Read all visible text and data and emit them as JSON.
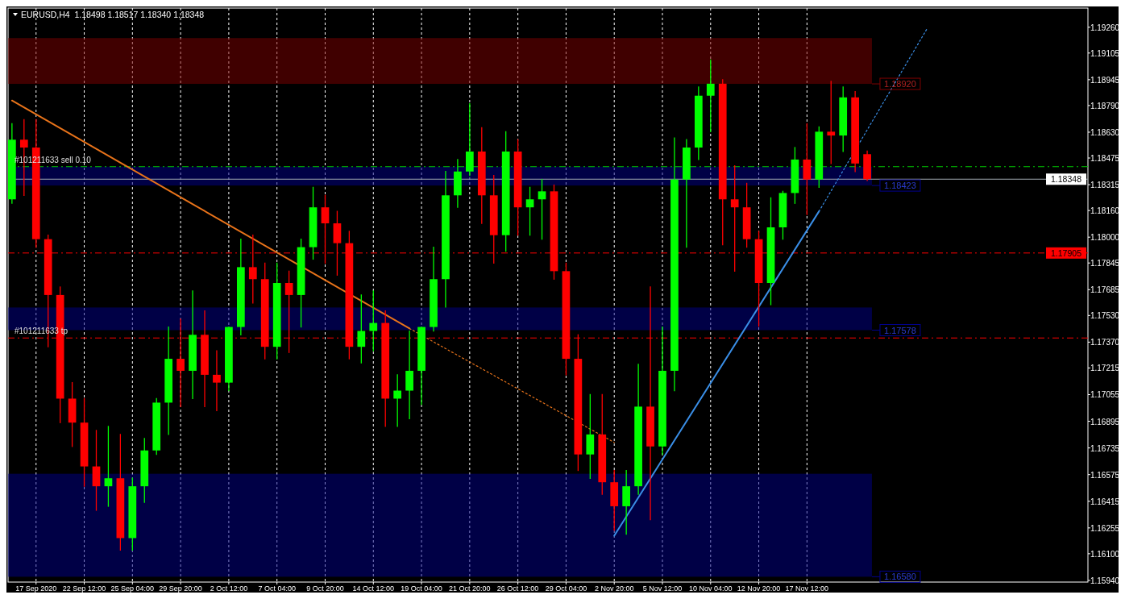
{
  "chart_data": {
    "type": "candlestick",
    "title": "EURUSD,H4  1.18498 1.18517 1.18340 1.18348",
    "categories": [
      null,
      null,
      "17 Sep 2020",
      null,
      null,
      null,
      "22 Sep 12:00",
      null,
      null,
      null,
      "25 Sep 04:00",
      null,
      null,
      null,
      "29 Sep 20:00",
      null,
      null,
      null,
      "2 Oct 12:00",
      null,
      null,
      null,
      "7 Oct 04:00",
      null,
      null,
      null,
      "9 Oct 20:00",
      null,
      null,
      null,
      "14 Oct 12:00",
      null,
      null,
      null,
      "19 Oct 04:00",
      null,
      null,
      null,
      "21 Oct 20:00",
      null,
      null,
      null,
      "26 Oct 12:00",
      null,
      null,
      null,
      "29 Oct 04:00",
      null,
      null,
      null,
      "2 Nov 20:00",
      null,
      null,
      null,
      "5 Nov 12:00",
      null,
      null,
      null,
      "10 Nov 04:00",
      null,
      null,
      null,
      "12 Nov 20:00",
      null,
      null,
      null,
      "17 Nov 12:00",
      null,
      null,
      null,
      null,
      null,
      null,
      null,
      null,
      null,
      null,
      null,
      null,
      null,
      null,
      null,
      null,
      null,
      null,
      null,
      null,
      null,
      null,
      null
    ],
    "ohlc": [
      [
        1.18227,
        1.18681,
        1.18203,
        1.18585
      ],
      [
        1.18585,
        1.18705,
        1.18251,
        1.18538
      ],
      [
        1.18538,
        1.18705,
        1.1794,
        1.17988
      ],
      [
        1.17988,
        1.18012,
        1.17342,
        1.17653
      ],
      [
        1.17653,
        1.17701,
        1.16887,
        1.17031
      ],
      [
        1.17031,
        1.17127,
        1.16744,
        1.16887
      ],
      [
        1.16887,
        1.17031,
        1.16505,
        1.16624
      ],
      [
        1.16624,
        1.1684,
        1.16361,
        1.16505
      ],
      [
        1.16505,
        1.16864,
        1.16385,
        1.16553
      ],
      [
        1.16553,
        1.16816,
        1.16122,
        1.16194
      ],
      [
        1.16194,
        1.16553,
        1.16122,
        1.16505
      ],
      [
        1.16505,
        1.16792,
        1.16409,
        1.1672
      ],
      [
        1.1672,
        1.17031,
        1.16696,
        1.17007
      ],
      [
        1.17007,
        1.17461,
        1.16816,
        1.1727
      ],
      [
        1.1727,
        1.17509,
        1.16983,
        1.17198
      ],
      [
        1.17198,
        1.17677,
        1.17031,
        1.17414
      ],
      [
        1.17414,
        1.17557,
        1.16983,
        1.17174
      ],
      [
        1.17174,
        1.17318,
        1.16959,
        1.17127
      ],
      [
        1.17127,
        1.17461,
        1.17079,
        1.17461
      ],
      [
        1.17461,
        1.17988,
        1.17414,
        1.1782
      ],
      [
        1.1782,
        1.18012,
        1.17605,
        1.17748
      ],
      [
        1.17748,
        1.17844,
        1.1727,
        1.17342
      ],
      [
        1.17342,
        1.17844,
        1.1727,
        1.17725
      ],
      [
        1.17725,
        1.17796,
        1.17308,
        1.17653
      ],
      [
        1.17653,
        1.17988,
        1.17461,
        1.1794
      ],
      [
        1.1794,
        1.18299,
        1.17868,
        1.18179
      ],
      [
        1.18179,
        1.18251,
        1.17844,
        1.18083
      ],
      [
        1.18083,
        1.18155,
        1.17772,
        1.17964
      ],
      [
        1.17964,
        1.18035,
        1.1727,
        1.17342
      ],
      [
        1.17342,
        1.17653,
        1.17246,
        1.17437
      ],
      [
        1.17437,
        1.17677,
        1.17318,
        1.17485
      ],
      [
        1.17485,
        1.17557,
        1.16864,
        1.17031
      ],
      [
        1.17031,
        1.17174,
        1.16864,
        1.17079
      ],
      [
        1.17079,
        1.17437,
        1.16911,
        1.17198
      ],
      [
        1.17198,
        1.17461,
        1.16997,
        1.17461
      ],
      [
        1.17461,
        1.1794,
        1.17437,
        1.17748
      ],
      [
        1.17748,
        1.18394,
        1.17581,
        1.18251
      ],
      [
        1.18251,
        1.18466,
        1.18179,
        1.18394
      ],
      [
        1.18394,
        1.18801,
        1.1837,
        1.18514
      ],
      [
        1.18514,
        1.18657,
        1.18083,
        1.18251
      ],
      [
        1.18251,
        1.1837,
        1.17844,
        1.18012
      ],
      [
        1.18012,
        1.18633,
        1.17916,
        1.18514
      ],
      [
        1.18514,
        1.18585,
        1.18012,
        1.18179
      ],
      [
        1.18179,
        1.18299,
        1.18012,
        1.18227
      ],
      [
        1.18227,
        1.18346,
        1.17988,
        1.18275
      ],
      [
        1.18275,
        1.18313,
        1.17748,
        1.17796
      ],
      [
        1.17796,
        1.17844,
        1.17174,
        1.1727
      ],
      [
        1.1727,
        1.17414,
        1.166,
        1.16696
      ],
      [
        1.16696,
        1.17055,
        1.16553,
        1.16816
      ],
      [
        1.16816,
        1.17055,
        1.16457,
        1.16529
      ],
      [
        1.16529,
        1.166,
        1.16242,
        1.16385
      ],
      [
        1.16385,
        1.166,
        1.16218,
        1.16505
      ],
      [
        1.16505,
        1.17237,
        1.16457,
        1.16983
      ],
      [
        1.16983,
        1.17701,
        1.16304,
        1.16744
      ],
      [
        1.16744,
        1.17461,
        1.16696,
        1.17198
      ],
      [
        1.17198,
        1.18595,
        1.17079,
        1.18346
      ],
      [
        1.18346,
        1.18585,
        1.1794,
        1.18538
      ],
      [
        1.18538,
        1.18901,
        1.18466,
        1.18849
      ],
      [
        1.18849,
        1.19064,
        1.18633,
        1.18921
      ],
      [
        1.18921,
        1.18945,
        1.17954,
        1.18227
      ],
      [
        1.18227,
        1.18428,
        1.17796,
        1.18179
      ],
      [
        1.18179,
        1.18323,
        1.1794,
        1.17988
      ],
      [
        1.17988,
        1.18035,
        1.17466,
        1.17725
      ],
      [
        1.17725,
        1.18236,
        1.17595,
        1.18059
      ],
      [
        1.18059,
        1.18275,
        1.17988,
        1.18265
      ],
      [
        1.18265,
        1.18538,
        1.18203,
        1.18466
      ],
      [
        1.18466,
        1.18681,
        1.18136,
        1.18346
      ],
      [
        1.18346,
        1.18662,
        1.18299,
        1.18633
      ],
      [
        1.18633,
        1.18935,
        1.18442,
        1.1861
      ],
      [
        1.1861,
        1.18901,
        1.18514,
        1.18839
      ],
      [
        1.18839,
        1.18873,
        1.18394,
        1.18442
      ],
      [
        1.18498,
        1.18517,
        1.1834,
        1.18348
      ],
      null,
      null,
      null,
      null,
      null,
      null,
      null,
      null,
      null,
      null,
      null,
      null,
      null,
      null,
      null,
      null,
      null,
      null
    ],
    "series": [
      {
        "type": "line",
        "color": "#e8731a",
        "line_style": "solid",
        "values": [
          1.1882,
          null,
          null,
          null,
          null,
          null,
          null,
          null,
          null,
          null,
          null,
          null,
          null,
          null,
          null,
          null,
          null,
          null,
          null,
          null,
          null,
          null,
          null,
          null,
          null,
          null,
          null,
          null,
          null,
          null,
          null,
          null,
          null,
          1.17452,
          null,
          null,
          null,
          null,
          null,
          null,
          null,
          null,
          null,
          null,
          null,
          null,
          null,
          null,
          null,
          null,
          null,
          null,
          null,
          null,
          null,
          null,
          null,
          null,
          null,
          null,
          null,
          null,
          null,
          null,
          null,
          null,
          null,
          null,
          null,
          null,
          null,
          null,
          null,
          null,
          null,
          null,
          null,
          null,
          null,
          null,
          null,
          null,
          null,
          null,
          null,
          null,
          null,
          null,
          null,
          null
        ]
      },
      {
        "type": "line",
        "color": "#e8731a",
        "line_style": "dotted",
        "values": [
          null,
          null,
          null,
          null,
          null,
          null,
          null,
          null,
          null,
          null,
          null,
          null,
          null,
          null,
          null,
          null,
          null,
          null,
          null,
          null,
          null,
          null,
          null,
          null,
          null,
          null,
          null,
          null,
          null,
          null,
          null,
          null,
          null,
          1.17452,
          null,
          null,
          null,
          null,
          null,
          null,
          null,
          null,
          null,
          null,
          null,
          null,
          null,
          null,
          null,
          null,
          1.16768,
          null,
          null,
          null,
          null,
          null,
          null,
          null,
          null,
          null,
          null,
          null,
          null,
          null,
          null,
          null,
          null,
          null,
          null,
          null,
          null,
          null,
          null,
          null,
          null,
          null,
          null,
          null,
          null,
          null,
          null,
          null,
          null,
          null,
          null,
          null,
          null,
          null,
          null,
          null
        ]
      },
      {
        "type": "line",
        "color": "#3a8ee6",
        "line_style": "solid",
        "values": [
          null,
          null,
          null,
          null,
          null,
          null,
          null,
          null,
          null,
          null,
          null,
          null,
          null,
          null,
          null,
          null,
          null,
          null,
          null,
          null,
          null,
          null,
          null,
          null,
          null,
          null,
          null,
          null,
          null,
          null,
          null,
          null,
          null,
          null,
          null,
          null,
          null,
          null,
          null,
          null,
          null,
          null,
          null,
          null,
          null,
          null,
          null,
          null,
          null,
          null,
          1.16208,
          null,
          null,
          null,
          null,
          null,
          null,
          null,
          null,
          null,
          null,
          null,
          null,
          null,
          null,
          null,
          null,
          1.18155,
          null,
          null,
          null,
          null,
          null,
          null,
          null,
          null,
          null,
          null,
          null,
          null,
          null,
          null,
          null,
          null,
          null,
          null,
          null,
          null,
          null,
          null
        ]
      },
      {
        "type": "line",
        "color": "#3a8ee6",
        "line_style": "dotted",
        "values": [
          null,
          null,
          null,
          null,
          null,
          null,
          null,
          null,
          null,
          null,
          null,
          null,
          null,
          null,
          null,
          null,
          null,
          null,
          null,
          null,
          null,
          null,
          null,
          null,
          null,
          null,
          null,
          null,
          null,
          null,
          null,
          null,
          null,
          null,
          null,
          null,
          null,
          null,
          null,
          null,
          null,
          null,
          null,
          null,
          null,
          null,
          null,
          null,
          null,
          null,
          null,
          null,
          null,
          null,
          null,
          null,
          null,
          null,
          null,
          null,
          null,
          null,
          null,
          null,
          null,
          null,
          null,
          1.18155,
          null,
          null,
          null,
          null,
          null,
          null,
          null,
          null,
          1.19255,
          null,
          null,
          null,
          null,
          null,
          null,
          null,
          null,
          null,
          null,
          null,
          null,
          null
        ]
      }
    ],
    "ylim": [
      1.1593,
      1.19375
    ],
    "yticks": [
      {
        "value": 1.1926,
        "label": "1.19260"
      },
      1.19105,
      1.18945,
      {
        "value": 1.1879,
        "label": "1.18790"
      },
      {
        "value": 1.1863,
        "label": "1.18630"
      },
      1.18475,
      1.18315,
      {
        "value": 1.1816,
        "label": "1.18160"
      },
      {
        "value": 1.18,
        "label": "1.18000"
      },
      1.17845,
      1.17685,
      {
        "value": 1.1753,
        "label": "1.17530"
      },
      {
        "value": 1.1737,
        "label": "1.17370"
      },
      1.17215,
      1.17055,
      1.16895,
      1.16735,
      1.16575,
      1.16415,
      1.16255,
      {
        "value": 1.161,
        "label": "1.16100"
      },
      {
        "value": 1.1594,
        "label": "1.15940"
      }
    ],
    "ref_lines": [
      {
        "axis": "y",
        "value": 1.18423,
        "label": "#101211633 sell 0.10",
        "color": "#00c800",
        "line_style": "dashed"
      },
      {
        "axis": "y",
        "value": 1.18348,
        "label": "1.18348",
        "color": "#a0a8b0",
        "line_style": "solid"
      },
      {
        "axis": "y",
        "value": 1.17905,
        "label": "1.17905",
        "color": "#ff0000",
        "line_style": "dashed"
      },
      {
        "axis": "y",
        "value": 1.17395,
        "label": "#101211633 tp",
        "color": "#ff0000",
        "line_style": "dashed"
      }
    ],
    "bands": [
      {
        "axis": "y",
        "from": 1.1892,
        "to": 1.19195,
        "label": "1.18920",
        "color": "#800000"
      },
      {
        "axis": "y",
        "from": 1.1831,
        "to": 1.18423,
        "label": "1.18423",
        "color": "#00008c"
      },
      {
        "axis": "y",
        "from": 1.17442,
        "to": 1.17578,
        "label": "1.17578",
        "color": "#00008c"
      },
      {
        "axis": "y",
        "from": 1.15962,
        "to": 1.1658,
        "label": "1.16580",
        "color": "#00008c"
      }
    ],
    "grid": "x"
  }
}
